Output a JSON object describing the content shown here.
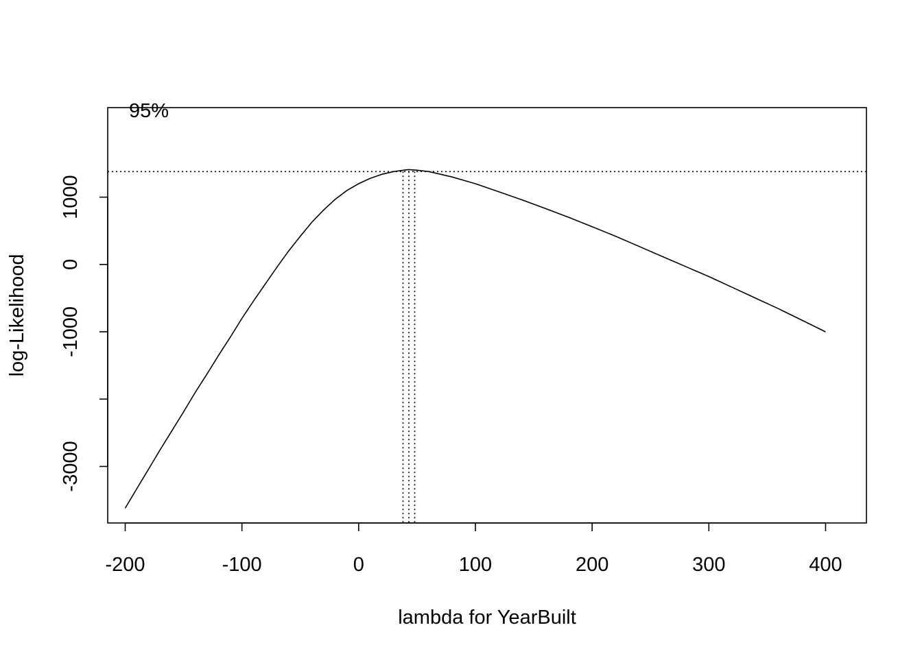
{
  "chart_data": {
    "type": "line",
    "title": "",
    "xlabel": "lambda for YearBuilt",
    "ylabel": "log-Likelihood",
    "xlim": [
      -215,
      435
    ],
    "ylim": [
      -3840,
      2330
    ],
    "x_ticks": [
      -200,
      -100,
      0,
      100,
      200,
      300,
      400
    ],
    "x_tick_labels": [
      "-200",
      "-100",
      "0",
      "100",
      "200",
      "300",
      "400"
    ],
    "y_ticks": [
      -3000,
      -2000,
      -1000,
      0,
      1000
    ],
    "y_tick_labels": [
      "-3000",
      "",
      "-1000",
      "0",
      "1000"
    ],
    "grid": false,
    "series": [
      {
        "x": [
          -200,
          -190,
          -180,
          -170,
          -160,
          -150,
          -140,
          -130,
          -120,
          -110,
          -100,
          -90,
          -80,
          -70,
          -60,
          -50,
          -40,
          -30,
          -20,
          -10,
          0,
          10,
          20,
          30,
          40,
          43,
          50,
          60,
          70,
          80,
          90,
          100,
          120,
          140,
          160,
          180,
          200,
          220,
          240,
          260,
          280,
          300,
          320,
          340,
          360,
          380,
          400
        ],
        "y": [
          -3620,
          -3330,
          -3040,
          -2750,
          -2470,
          -2190,
          -1900,
          -1630,
          -1350,
          -1080,
          -800,
          -540,
          -290,
          -40,
          200,
          420,
          630,
          810,
          970,
          1100,
          1200,
          1280,
          1340,
          1380,
          1405,
          1410,
          1400,
          1380,
          1340,
          1300,
          1250,
          1200,
          1080,
          960,
          830,
          700,
          560,
          420,
          270,
          120,
          -30,
          -180,
          -340,
          -500,
          -660,
          -830,
          -1000
        ]
      }
    ],
    "ci_label": "95%",
    "ci_threshold": 1380,
    "ci_lines_x": [
      38,
      43,
      48
    ]
  }
}
